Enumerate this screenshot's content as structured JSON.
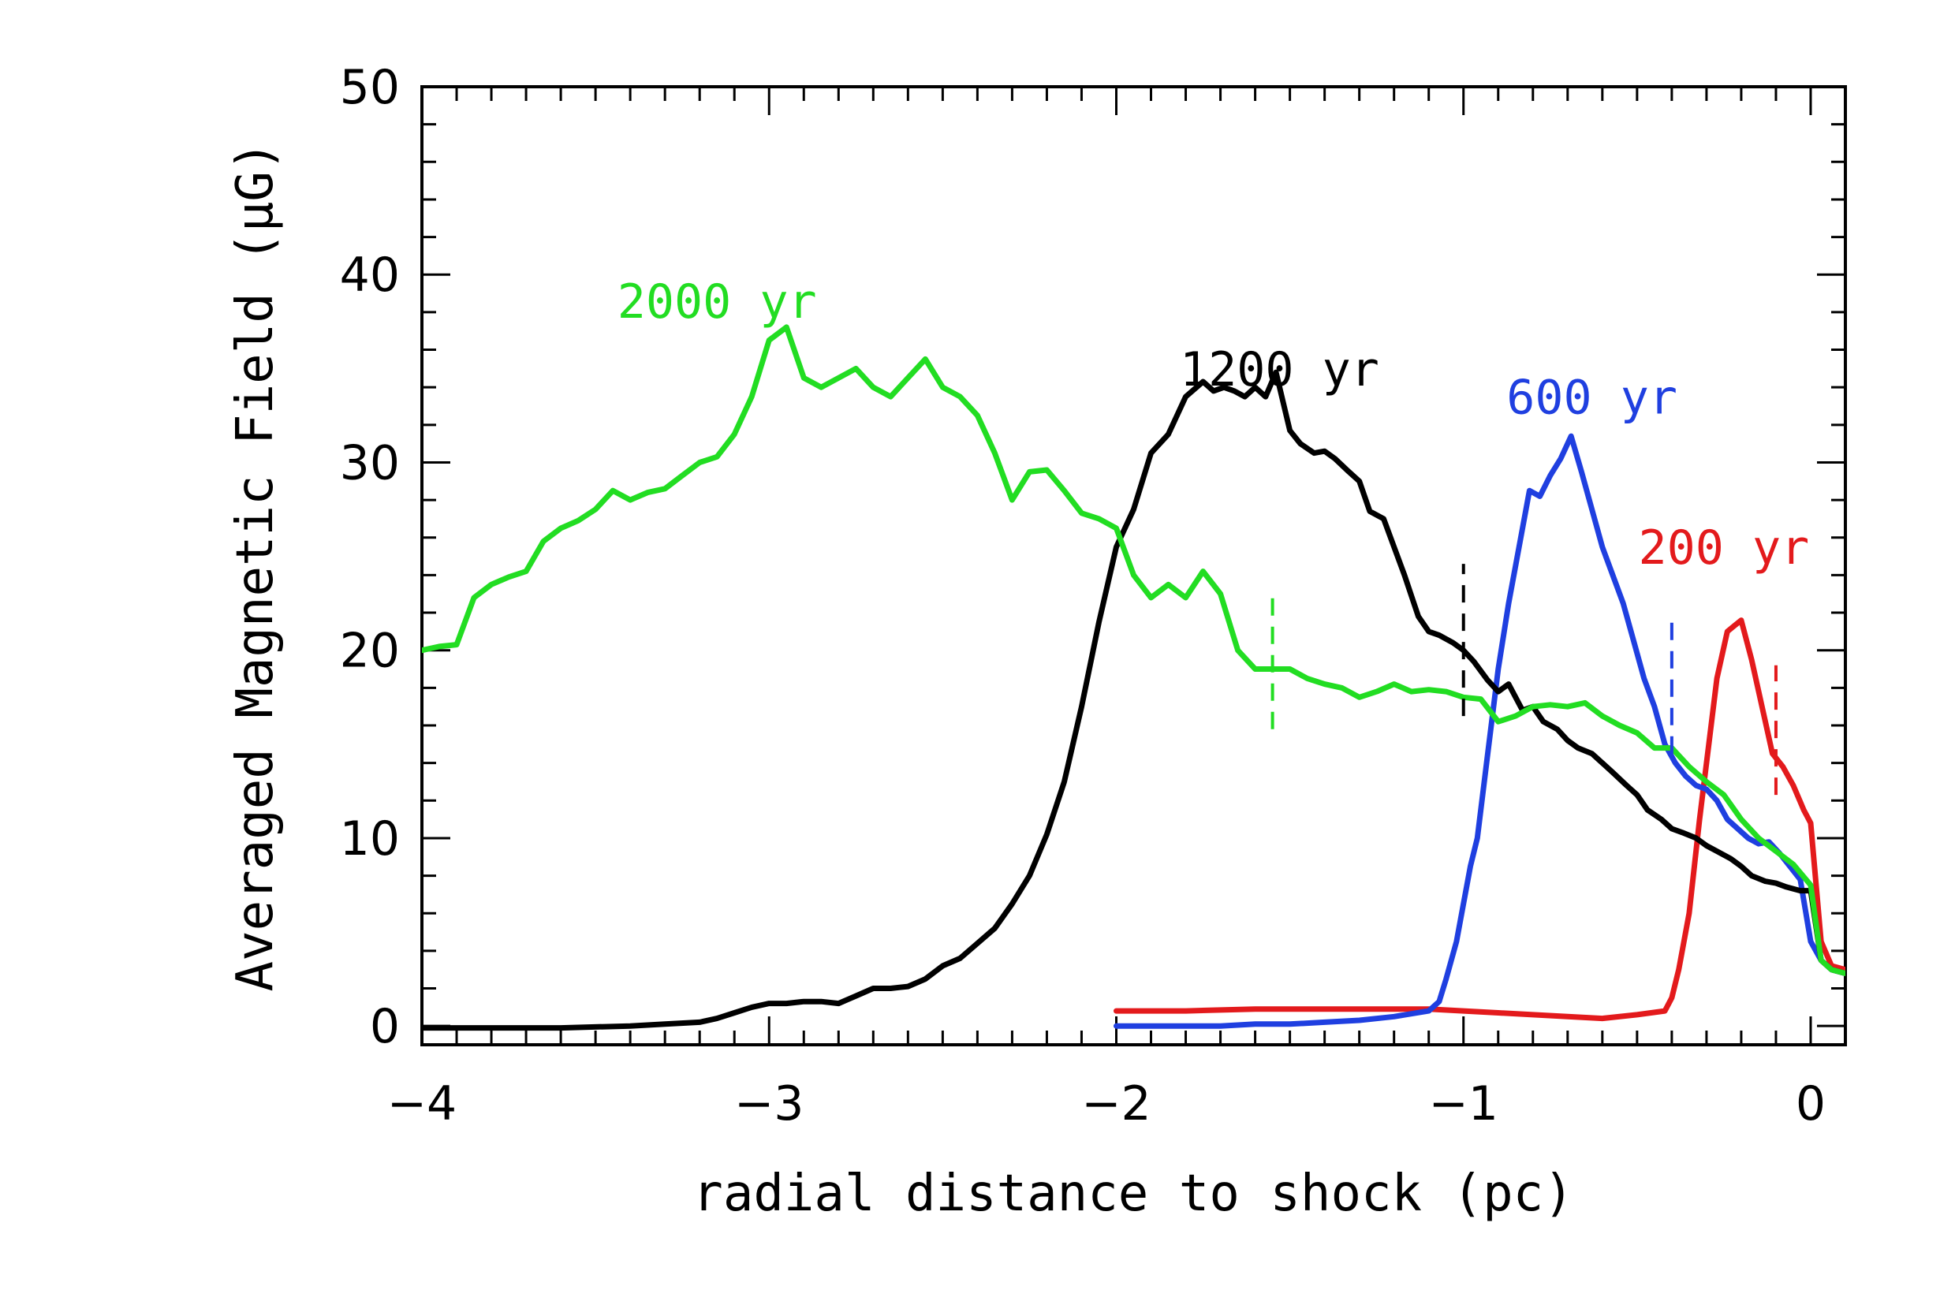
{
  "chart_data": {
    "type": "line",
    "title": "",
    "xlabel": "radial distance to shock (pc)",
    "ylabel": "Averaged Magnetic Field (μG)",
    "xlim": [
      -4,
      0.1
    ],
    "ylim": [
      -1,
      50
    ],
    "xticks": [
      -4,
      -3,
      -2,
      -1,
      0
    ],
    "xtick_labels": [
      "−4",
      "−3",
      "−2",
      "−1",
      "0"
    ],
    "yticks": [
      0,
      10,
      20,
      30,
      40,
      50
    ],
    "ytick_labels": [
      "0",
      "10",
      "20",
      "30",
      "40",
      "50"
    ],
    "grid": false,
    "series": [
      {
        "name": "200 yr",
        "color": "#e31a1c",
        "label_at": [
          -0.25,
          24.6
        ],
        "marker_x": -0.1,
        "marker_range": [
          12.3,
          19.2
        ],
        "x": [
          -2.0,
          -1.8,
          -1.6,
          -1.4,
          -1.2,
          -1.1,
          -1.0,
          -0.9,
          -0.8,
          -0.7,
          -0.6,
          -0.5,
          -0.42,
          -0.4,
          -0.38,
          -0.35,
          -0.32,
          -0.29,
          -0.27,
          -0.24,
          -0.22,
          -0.2,
          -0.17,
          -0.14,
          -0.11,
          -0.08,
          -0.05,
          -0.02,
          0.0,
          0.03,
          0.06,
          0.1
        ],
        "y": [
          0.8,
          0.8,
          0.9,
          0.9,
          0.9,
          0.9,
          0.8,
          0.7,
          0.6,
          0.5,
          0.4,
          0.6,
          0.8,
          1.5,
          3.0,
          6.0,
          11.0,
          15.5,
          18.5,
          21.0,
          21.3,
          21.6,
          19.5,
          17.0,
          14.5,
          13.8,
          12.8,
          11.5,
          10.8,
          4.5,
          3.2,
          3.0
        ]
      },
      {
        "name": "600 yr",
        "color": "#1f3fe0",
        "label_at": [
          -0.63,
          32.6
        ],
        "marker_x": -0.4,
        "marker_range": [
          14.5,
          21.8
        ],
        "x": [
          -2.0,
          -1.9,
          -1.8,
          -1.7,
          -1.6,
          -1.5,
          -1.4,
          -1.3,
          -1.2,
          -1.1,
          -1.07,
          -1.05,
          -1.02,
          -1.0,
          -0.98,
          -0.96,
          -0.93,
          -0.9,
          -0.87,
          -0.84,
          -0.81,
          -0.78,
          -0.75,
          -0.72,
          -0.69,
          -0.66,
          -0.63,
          -0.6,
          -0.57,
          -0.54,
          -0.51,
          -0.48,
          -0.45,
          -0.42,
          -0.39,
          -0.36,
          -0.33,
          -0.3,
          -0.27,
          -0.24,
          -0.21,
          -0.18,
          -0.15,
          -0.12,
          -0.09,
          -0.06,
          -0.03,
          0.0,
          0.03,
          0.06,
          0.1
        ],
        "y": [
          0.0,
          0.0,
          0.0,
          0.0,
          0.1,
          0.1,
          0.2,
          0.3,
          0.5,
          0.8,
          1.3,
          2.5,
          4.5,
          6.5,
          8.5,
          10.0,
          14.5,
          19.0,
          22.5,
          25.5,
          28.5,
          28.2,
          29.3,
          30.2,
          31.4,
          29.5,
          27.5,
          25.5,
          24.0,
          22.5,
          20.5,
          18.5,
          17.0,
          15.0,
          14.0,
          13.3,
          12.8,
          12.6,
          12.0,
          11.0,
          10.5,
          10.0,
          9.7,
          9.8,
          9.2,
          8.5,
          7.8,
          4.5,
          3.5,
          3.0,
          2.8
        ]
      },
      {
        "name": "1200 yr",
        "color": "#000000",
        "label_at": [
          -1.53,
          34.1
        ],
        "marker_x": -1.0,
        "marker_range": [
          16.5,
          24.6
        ],
        "x": [
          -4.0,
          -3.8,
          -3.6,
          -3.4,
          -3.3,
          -3.2,
          -3.15,
          -3.1,
          -3.05,
          -3.0,
          -2.95,
          -2.9,
          -2.85,
          -2.8,
          -2.75,
          -2.7,
          -2.65,
          -2.6,
          -2.55,
          -2.5,
          -2.45,
          -2.4,
          -2.35,
          -2.3,
          -2.25,
          -2.2,
          -2.15,
          -2.1,
          -2.05,
          -2.0,
          -1.95,
          -1.9,
          -1.85,
          -1.8,
          -1.75,
          -1.72,
          -1.69,
          -1.66,
          -1.63,
          -1.6,
          -1.57,
          -1.54,
          -1.5,
          -1.47,
          -1.43,
          -1.4,
          -1.37,
          -1.33,
          -1.3,
          -1.27,
          -1.23,
          -1.2,
          -1.17,
          -1.13,
          -1.1,
          -1.07,
          -1.03,
          -1.0,
          -0.97,
          -0.93,
          -0.9,
          -0.87,
          -0.83,
          -0.8,
          -0.77,
          -0.73,
          -0.7,
          -0.67,
          -0.63,
          -0.6,
          -0.57,
          -0.53,
          -0.5,
          -0.47,
          -0.43,
          -0.4,
          -0.37,
          -0.33,
          -0.3,
          -0.27,
          -0.23,
          -0.2,
          -0.17,
          -0.13,
          -0.1,
          -0.07,
          -0.03,
          0.0,
          0.03,
          0.06,
          0.1
        ],
        "y": [
          -0.1,
          -0.1,
          -0.1,
          0.0,
          0.1,
          0.2,
          0.4,
          0.7,
          1.0,
          1.2,
          1.2,
          1.3,
          1.3,
          1.2,
          1.6,
          2.0,
          2.0,
          2.1,
          2.5,
          3.2,
          3.6,
          4.4,
          5.2,
          6.5,
          8.0,
          10.2,
          13.0,
          17.0,
          21.5,
          25.5,
          27.5,
          30.5,
          31.5,
          33.5,
          34.3,
          33.8,
          34.0,
          33.8,
          33.5,
          34.0,
          33.5,
          34.8,
          31.7,
          31.0,
          30.5,
          30.6,
          30.2,
          29.5,
          29.0,
          27.4,
          27.0,
          25.5,
          24.0,
          21.8,
          21.0,
          20.8,
          20.4,
          20.0,
          19.4,
          18.4,
          17.8,
          18.2,
          16.8,
          17.0,
          16.2,
          15.8,
          15.2,
          14.8,
          14.5,
          14.0,
          13.5,
          12.8,
          12.3,
          11.5,
          11.0,
          10.5,
          10.3,
          10.0,
          9.6,
          9.3,
          8.9,
          8.5,
          8.0,
          7.7,
          7.6,
          7.4,
          7.2,
          7.2,
          3.5,
          3.0,
          2.8
        ]
      },
      {
        "name": "2000 yr",
        "color": "#22dd22",
        "label_at": [
          -3.15,
          37.7
        ],
        "marker_x": -1.55,
        "marker_range": [
          15.8,
          22.9
        ],
        "x": [
          -4.0,
          -3.95,
          -3.9,
          -3.85,
          -3.8,
          -3.75,
          -3.7,
          -3.65,
          -3.6,
          -3.55,
          -3.5,
          -3.45,
          -3.4,
          -3.35,
          -3.3,
          -3.25,
          -3.2,
          -3.15,
          -3.1,
          -3.05,
          -3.0,
          -2.95,
          -2.9,
          -2.85,
          -2.8,
          -2.75,
          -2.7,
          -2.65,
          -2.6,
          -2.55,
          -2.5,
          -2.45,
          -2.4,
          -2.35,
          -2.3,
          -2.25,
          -2.2,
          -2.15,
          -2.1,
          -2.05,
          -2.0,
          -1.95,
          -1.9,
          -1.85,
          -1.8,
          -1.75,
          -1.7,
          -1.65,
          -1.6,
          -1.55,
          -1.5,
          -1.45,
          -1.4,
          -1.35,
          -1.3,
          -1.25,
          -1.2,
          -1.15,
          -1.1,
          -1.05,
          -1.0,
          -0.95,
          -0.9,
          -0.85,
          -0.8,
          -0.75,
          -0.7,
          -0.65,
          -0.6,
          -0.55,
          -0.5,
          -0.45,
          -0.4,
          -0.35,
          -0.3,
          -0.25,
          -0.2,
          -0.15,
          -0.1,
          -0.05,
          0.0,
          0.03,
          0.06,
          0.1
        ],
        "y": [
          20.0,
          20.2,
          20.3,
          22.8,
          23.5,
          23.9,
          24.2,
          25.8,
          26.5,
          26.9,
          27.5,
          28.5,
          28.0,
          28.4,
          28.6,
          29.3,
          30.0,
          30.3,
          31.5,
          33.5,
          36.5,
          37.2,
          34.5,
          34.0,
          34.5,
          35.0,
          34.0,
          33.5,
          34.5,
          35.5,
          34.0,
          33.5,
          32.5,
          30.5,
          28.0,
          29.5,
          29.6,
          28.5,
          27.3,
          27.0,
          26.5,
          24.0,
          22.8,
          23.5,
          22.8,
          24.2,
          23.0,
          20.0,
          19.0,
          19.0,
          19.0,
          18.5,
          18.2,
          18.0,
          17.5,
          17.8,
          18.2,
          17.8,
          17.9,
          17.8,
          17.5,
          17.4,
          16.2,
          16.5,
          17.0,
          17.1,
          17.0,
          17.2,
          16.5,
          16.0,
          15.6,
          14.8,
          14.8,
          13.8,
          13.0,
          12.3,
          11.0,
          10.0,
          9.3,
          8.6,
          7.5,
          3.5,
          3.0,
          2.8
        ]
      }
    ]
  }
}
